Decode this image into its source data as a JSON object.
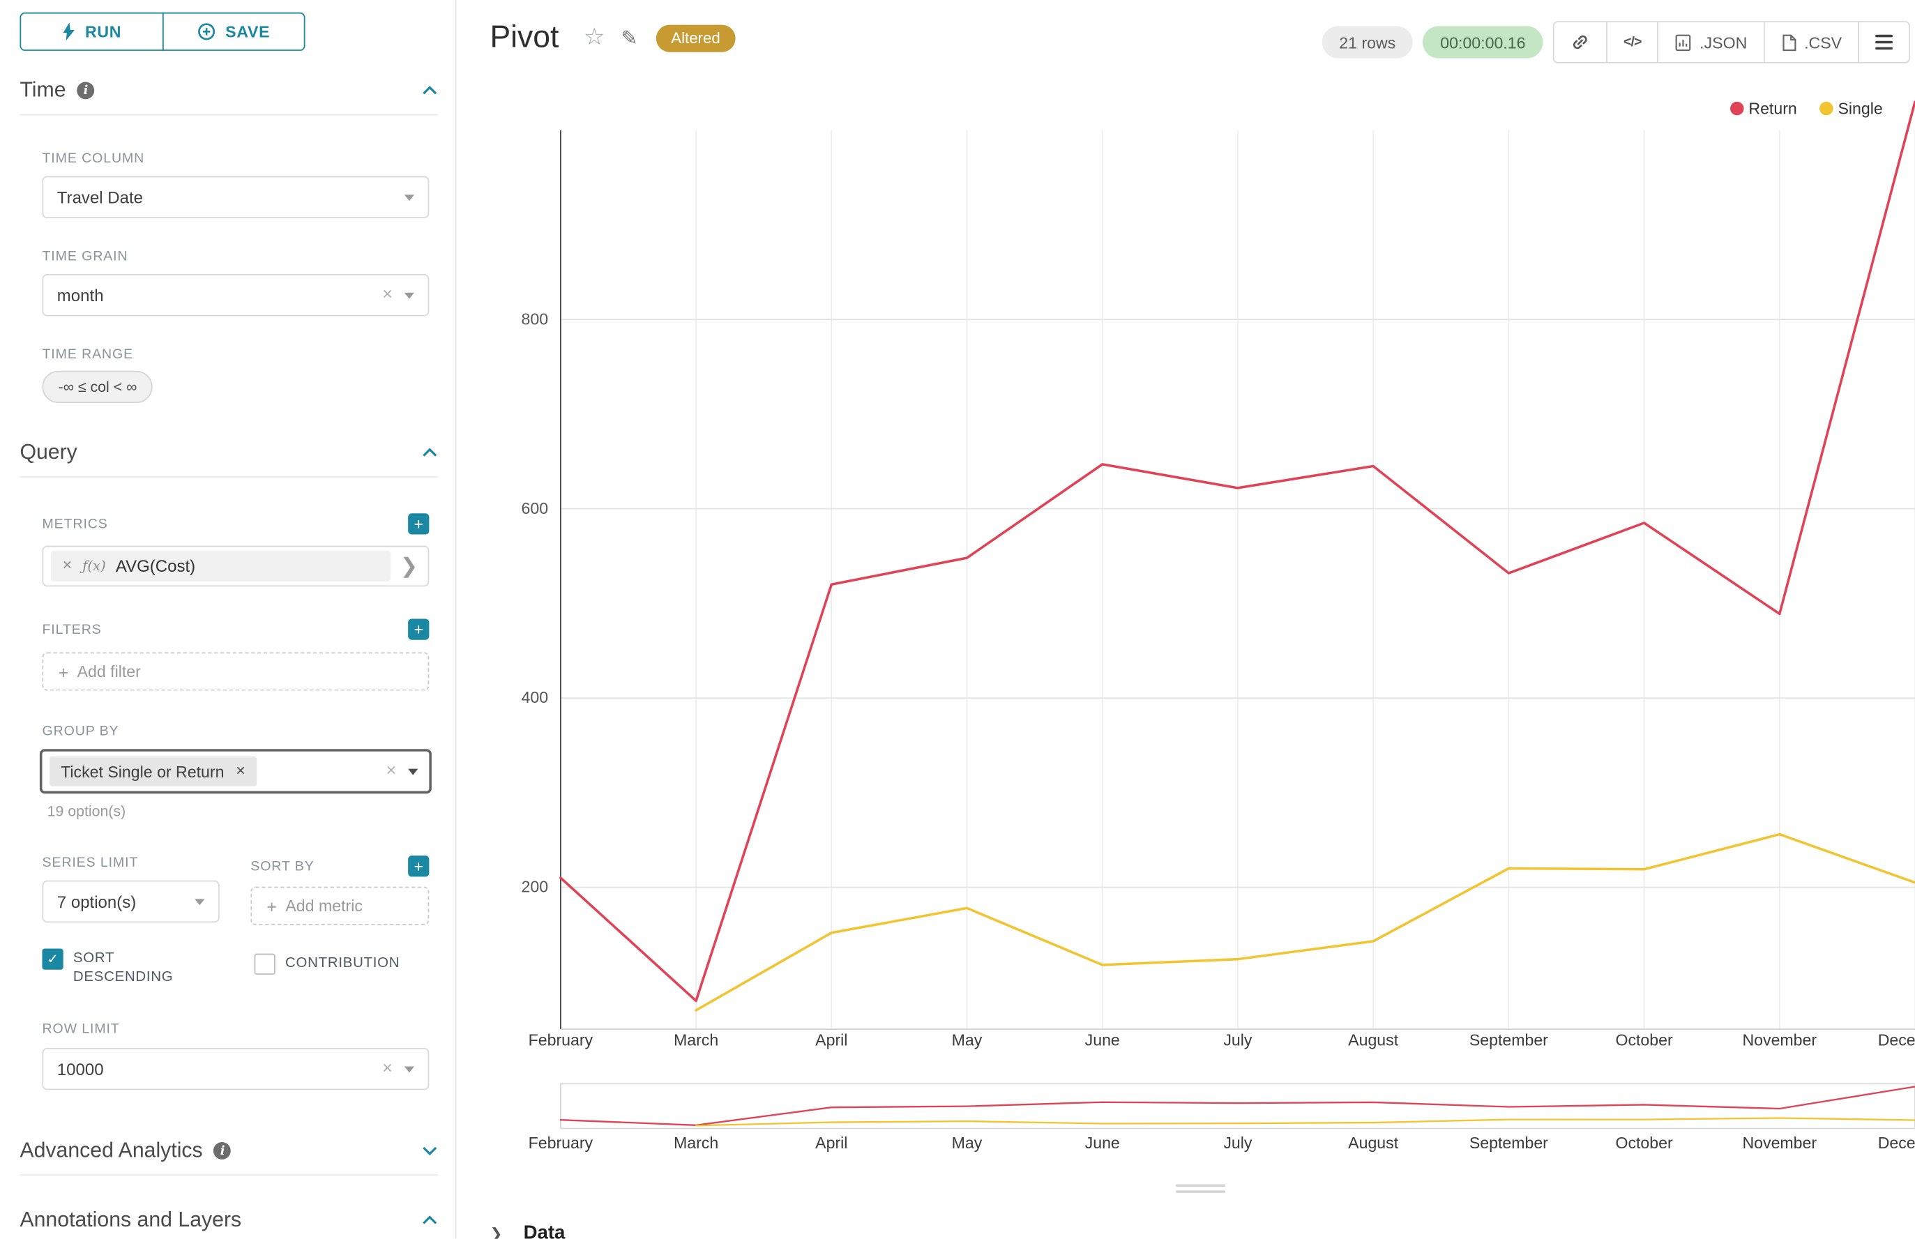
{
  "toolbar": {
    "run": "RUN",
    "save": "SAVE"
  },
  "sidebar": {
    "time": {
      "heading": "Time",
      "time_column_label": "TIME COLUMN",
      "time_column_value": "Travel Date",
      "time_grain_label": "TIME GRAIN",
      "time_grain_value": "month",
      "time_range_label": "TIME RANGE",
      "time_range_value": "-∞ ≤ col < ∞"
    },
    "query": {
      "heading": "Query",
      "metrics_label": "METRICS",
      "metric_fx": "ƒ(x)",
      "metric_label": "AVG(Cost)",
      "filters_label": "FILTERS",
      "add_filter_placeholder": "Add filter",
      "group_by_label": "GROUP BY",
      "group_by_tag": "Ticket Single or Return",
      "group_by_hint": "19 option(s)",
      "series_limit_label": "SERIES LIMIT",
      "series_limit_value": "7 option(s)",
      "sort_by_label": "SORT BY",
      "sort_by_placeholder": "Add metric",
      "sort_descending_label": "SORT DESCENDING",
      "contribution_label": "CONTRIBUTION",
      "row_limit_label": "ROW LIMIT",
      "row_limit_value": "10000"
    },
    "advanced_heading": "Advanced Analytics",
    "annotations_heading": "Annotations and Layers"
  },
  "header": {
    "title": "Pivot",
    "altered_badge": "Altered",
    "rows_badge": "21 rows",
    "timer": "00:00:00.16",
    "json_button": ".JSON",
    "csv_button": ".CSV"
  },
  "footer": {
    "data_heading": "Data"
  },
  "icons": {
    "info": "i",
    "plus": "+",
    "close": "✕",
    "check": "✓",
    "chevron_right": "❯",
    "star": "☆",
    "edit": "✎",
    "code": "</>"
  },
  "colors": {
    "accent": "#1a87a3",
    "altered_badge": "#c79b31",
    "timer_bg": "#c5e6c4",
    "timer_text": "#44694a",
    "rows_bg": "#ececec",
    "rows_text": "#5c5c5c"
  },
  "chart_data": {
    "type": "line",
    "x": [
      "February",
      "March",
      "April",
      "May",
      "June",
      "July",
      "August",
      "September",
      "October",
      "November",
      "December"
    ],
    "series": [
      {
        "name": "Return",
        "color": "#e04355",
        "values": [
          210,
          80,
          520,
          548,
          647,
          622,
          645,
          532,
          585,
          489,
          1030
        ]
      },
      {
        "name": "Single",
        "color": "#f2c431",
        "values": [
          null,
          70,
          152,
          178,
          118,
          124,
          143,
          220,
          219,
          256,
          205
        ]
      }
    ],
    "title": "Pivot",
    "xlabel": "",
    "ylabel": "",
    "yticks": [
      200,
      400,
      600,
      800
    ],
    "ylim": [
      50,
      1000
    ],
    "grid": true,
    "legend_position": "top-right",
    "has_preview_brush": true
  }
}
